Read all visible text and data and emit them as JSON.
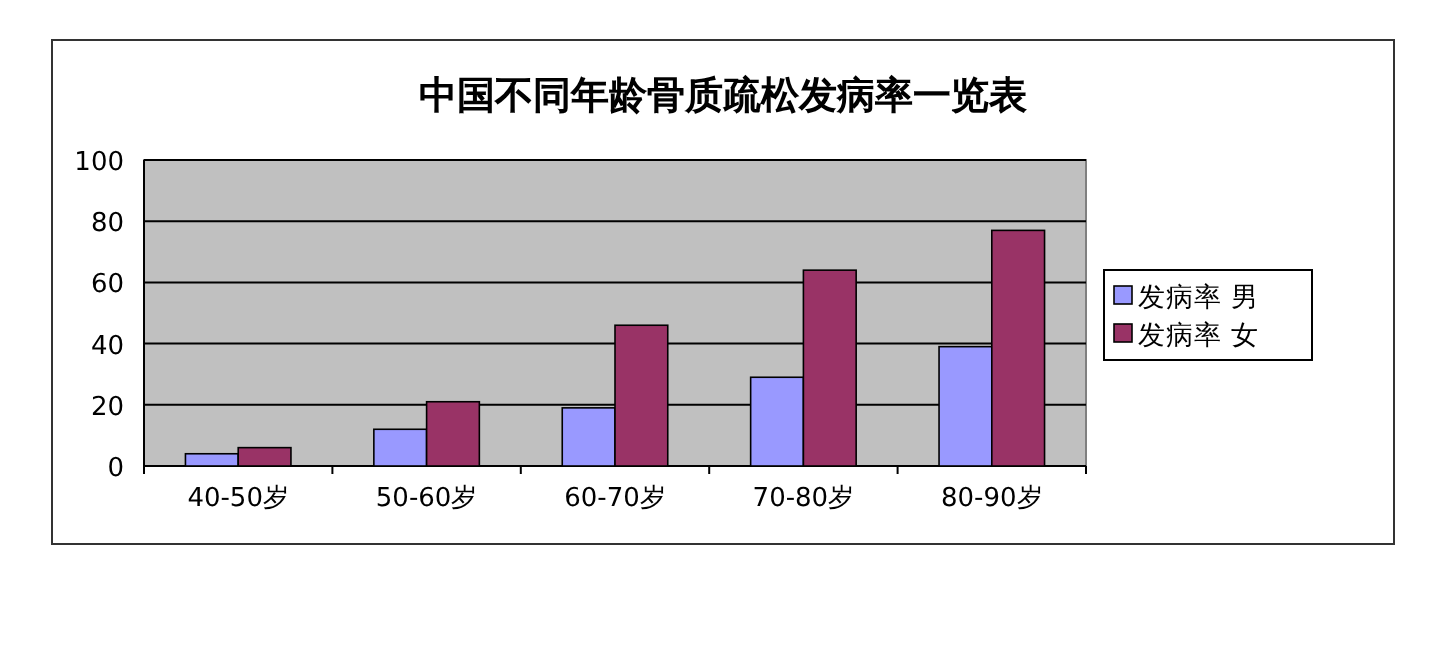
{
  "chart_data": {
    "type": "bar",
    "title": "中国不同年龄骨质疏松发病率一览表",
    "categories": [
      "40-50岁",
      "50-60岁",
      "60-70岁",
      "70-80岁",
      "80-90岁"
    ],
    "series": [
      {
        "name": "发病率 男",
        "color": "#9999ff",
        "values": [
          4,
          12,
          19,
          29,
          39
        ]
      },
      {
        "name": "发病率 女",
        "color": "#993366",
        "values": [
          6,
          21,
          46,
          64,
          77
        ]
      }
    ],
    "ylim": [
      0,
      100
    ],
    "yticks": [
      0,
      20,
      40,
      60,
      80,
      100
    ],
    "grid": "y",
    "legend": "right"
  }
}
